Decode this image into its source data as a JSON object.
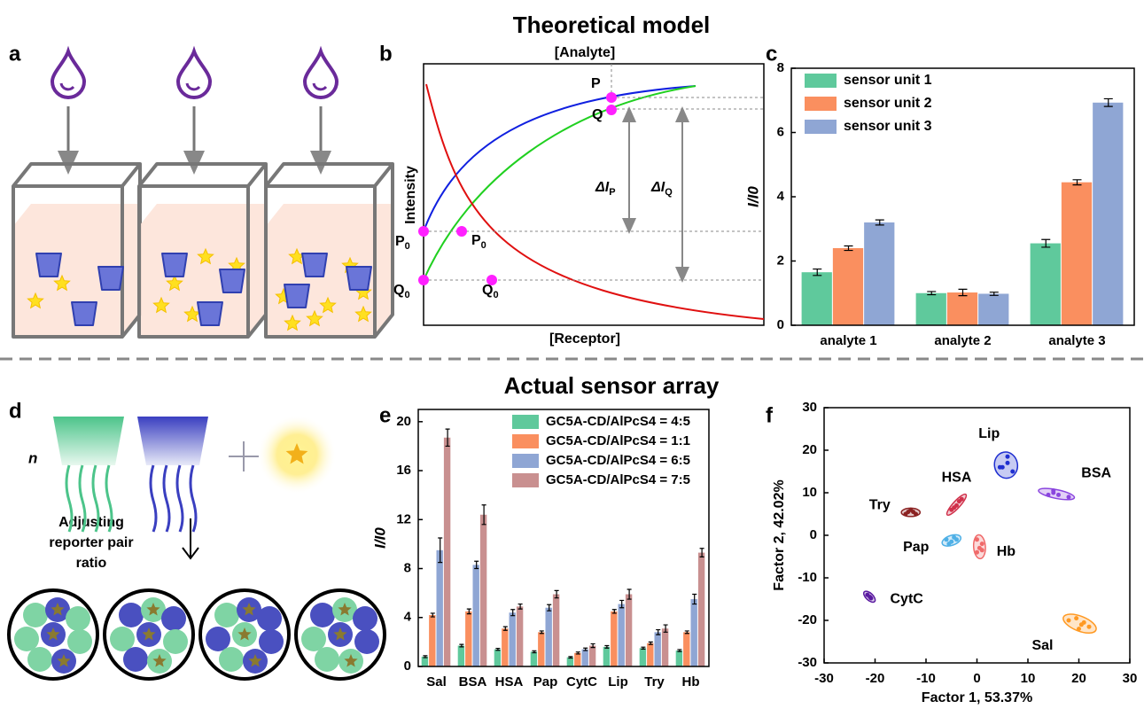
{
  "titles": {
    "top": "Theoretical model",
    "bottom": "Actual sensor array"
  },
  "panel_letters": [
    "a",
    "b",
    "c",
    "d",
    "e",
    "f"
  ],
  "panel_b": {
    "top_label": "[Analyte]",
    "bottom_label": "[Receptor]",
    "y_label": "Intensity",
    "points": [
      {
        "main": "P",
        "sub": ""
      },
      {
        "main": "Q",
        "sub": ""
      },
      {
        "main": "P",
        "sub": "0"
      },
      {
        "main": "Q",
        "sub": "0"
      },
      {
        "main": "P",
        "sub": "0"
      },
      {
        "main": "Q",
        "sub": "0"
      }
    ],
    "deltas": [
      {
        "main": "ΔI",
        "sub": "P"
      },
      {
        "main": "ΔI",
        "sub": "Q"
      }
    ]
  },
  "panel_d": {
    "n_label": "n",
    "caption": [
      "Adjusting",
      "reporter pair",
      "ratio"
    ]
  },
  "chart_data": [
    {
      "type": "bar",
      "y_label": "I/I0",
      "categories": [
        "analyte 1",
        "analyte 2",
        "analyte 3"
      ],
      "series": [
        {
          "name": "sensor unit 1",
          "color": "#5fc99c",
          "values": [
            1.65,
            1.0,
            2.55
          ],
          "errors": [
            0.1,
            0.05,
            0.12
          ]
        },
        {
          "name": "sensor unit 2",
          "color": "#fa8f5f",
          "values": [
            2.4,
            1.02,
            4.45
          ],
          "errors": [
            0.07,
            0.1,
            0.08
          ]
        },
        {
          "name": "sensor unit 3",
          "color": "#8fa6d4",
          "values": [
            3.2,
            0.98,
            6.93
          ],
          "errors": [
            0.08,
            0.05,
            0.12
          ]
        }
      ],
      "ylim": [
        0,
        8
      ],
      "yticks": [
        0,
        2,
        4,
        6,
        8
      ],
      "legend": "upper left"
    },
    {
      "type": "bar",
      "y_label": "I/I0",
      "categories": [
        "Sal",
        "BSA",
        "HSA",
        "Pap",
        "CytC",
        "Lip",
        "Try",
        "Hb"
      ],
      "series": [
        {
          "name": "GC5A-CD/AlPcS4 = 4:5",
          "color": "#5fc99c",
          "values": [
            0.8,
            1.7,
            1.4,
            1.2,
            0.75,
            1.6,
            1.5,
            1.3
          ],
          "errors": [
            0.08,
            0.1,
            0.08,
            0.08,
            0.06,
            0.1,
            0.08,
            0.08
          ]
        },
        {
          "name": "GC5A-CD/AlPcS4 = 1:1",
          "color": "#fa8f5f",
          "values": [
            4.2,
            4.5,
            3.1,
            2.8,
            1.1,
            4.5,
            1.9,
            2.8
          ],
          "errors": [
            0.15,
            0.2,
            0.15,
            0.1,
            0.08,
            0.15,
            0.1,
            0.1
          ]
        },
        {
          "name": "GC5A-CD/AlPcS4 = 6:5",
          "color": "#8fa6d4",
          "values": [
            9.5,
            8.3,
            4.4,
            4.8,
            1.4,
            5.1,
            2.8,
            5.5
          ],
          "errors": [
            1.0,
            0.3,
            0.25,
            0.25,
            0.1,
            0.3,
            0.2,
            0.4
          ]
        },
        {
          "name": "GC5A-CD/AlPcS4 = 7:5",
          "color": "#c99090",
          "values": [
            18.7,
            12.4,
            4.9,
            5.9,
            1.7,
            5.9,
            3.1,
            9.3
          ],
          "errors": [
            0.7,
            0.8,
            0.2,
            0.3,
            0.15,
            0.4,
            0.3,
            0.35
          ]
        }
      ],
      "ylim": [
        0,
        21
      ],
      "yticks": [
        0,
        4,
        8,
        12,
        16,
        20
      ],
      "legend": "upper right"
    },
    {
      "type": "scatter",
      "x_label": "Factor 1, 53.37%",
      "y_label": "Factor 2, 42.02%",
      "xlim": [
        -30,
        30
      ],
      "ylim": [
        -30,
        30
      ],
      "xticks": [
        -30,
        -20,
        -10,
        0,
        10,
        20,
        30
      ],
      "yticks": [
        -30,
        -20,
        -10,
        0,
        10,
        20,
        30
      ],
      "series": [
        {
          "name": "Lip",
          "color": "#1f2fd0",
          "x": [
            5,
            6,
            7,
            6,
            4.5
          ],
          "y": [
            16,
            17,
            15,
            18.5,
            16
          ]
        },
        {
          "name": "BSA",
          "color": "#8a45de",
          "x": [
            14,
            15,
            16,
            18,
            15
          ],
          "y": [
            9.5,
            10,
            9.5,
            9,
            10.5
          ]
        },
        {
          "name": "HSA",
          "color": "#d0304a",
          "x": [
            -5,
            -4,
            -3.5,
            -4.5,
            -3
          ],
          "y": [
            6,
            7,
            8,
            6.5,
            8.5
          ]
        },
        {
          "name": "Try",
          "color": "#8b2222",
          "x": [
            -14,
            -13,
            -12.5,
            -13.5,
            -12
          ],
          "y": [
            5,
            6,
            5.5,
            5.5,
            5
          ]
        },
        {
          "name": "Pap",
          "color": "#4fb0e6",
          "x": [
            -6,
            -5,
            -4.5,
            -5.5,
            -4
          ],
          "y": [
            -1,
            -1.5,
            -0.5,
            -2,
            -1
          ]
        },
        {
          "name": "Hb",
          "color": "#f06a6a",
          "x": [
            0,
            1,
            0.5,
            0,
            1
          ],
          "y": [
            -1,
            -2,
            -3,
            -4,
            -3.5
          ]
        },
        {
          "name": "CytC",
          "color": "#5a1aa0",
          "x": [
            -21.5,
            -21,
            -20.8
          ],
          "y": [
            -14,
            -14.5,
            -14.8
          ]
        },
        {
          "name": "Sal",
          "color": "#ff9922",
          "x": [
            18,
            19.5,
            20.5,
            21,
            22,
            20
          ],
          "y": [
            -20,
            -19.5,
            -21,
            -20.5,
            -21.5,
            -22
          ]
        }
      ]
    }
  ]
}
